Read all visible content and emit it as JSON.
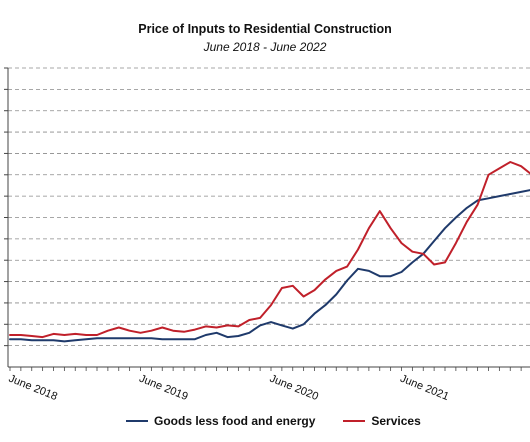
{
  "chart_data": {
    "type": "line",
    "title": "Price of Inputs to Residential Construction",
    "subtitle": "June 2018 - June 2022",
    "xlabel": "",
    "ylabel": "",
    "x": [
      "2018-06",
      "2018-07",
      "2018-08",
      "2018-09",
      "2018-10",
      "2018-11",
      "2018-12",
      "2019-01",
      "2019-02",
      "2019-03",
      "2019-04",
      "2019-05",
      "2019-06",
      "2019-07",
      "2019-08",
      "2019-09",
      "2019-10",
      "2019-11",
      "2019-12",
      "2020-01",
      "2020-02",
      "2020-03",
      "2020-04",
      "2020-05",
      "2020-06",
      "2020-07",
      "2020-08",
      "2020-09",
      "2020-10",
      "2020-11",
      "2020-12",
      "2021-01",
      "2021-02",
      "2021-03",
      "2021-04",
      "2021-05",
      "2021-06",
      "2021-07",
      "2021-08",
      "2021-09",
      "2021-10",
      "2021-11",
      "2021-12",
      "2022-01",
      "2022-02",
      "2022-03",
      "2022-04",
      "2022-05",
      "2022-06"
    ],
    "tick_labels": [
      {
        "x": "2018-06",
        "label": "June 2018"
      },
      {
        "x": "2019-06",
        "label": "June 2019"
      },
      {
        "x": "2020-06",
        "label": "June 2020"
      },
      {
        "x": "2021-06",
        "label": "June 2021"
      }
    ],
    "ylim": [
      0,
      14
    ],
    "y_gridlines": 14,
    "grid": "horizontal dashed",
    "legend_position": "bottom",
    "series": [
      {
        "name": "Goods less food and energy",
        "color": "#1f3a6b",
        "values": [
          1.3,
          1.3,
          1.25,
          1.25,
          1.25,
          1.2,
          1.25,
          1.3,
          1.35,
          1.35,
          1.35,
          1.35,
          1.35,
          1.35,
          1.3,
          1.3,
          1.3,
          1.3,
          1.5,
          1.6,
          1.4,
          1.45,
          1.6,
          1.95,
          2.1,
          1.95,
          1.8,
          2.0,
          2.5,
          2.9,
          3.4,
          4.05,
          4.6,
          4.5,
          4.25,
          4.25,
          4.45,
          4.9,
          5.3,
          5.9,
          6.5,
          7.0,
          7.45,
          7.8,
          7.9,
          8.0,
          8.1,
          8.2,
          8.3
        ]
      },
      {
        "name": "Services",
        "color": "#c0202a",
        "values": [
          1.5,
          1.5,
          1.45,
          1.4,
          1.55,
          1.5,
          1.55,
          1.5,
          1.5,
          1.7,
          1.85,
          1.7,
          1.6,
          1.7,
          1.85,
          1.7,
          1.65,
          1.75,
          1.9,
          1.85,
          1.95,
          1.9,
          2.2,
          2.3,
          2.9,
          3.7,
          3.8,
          3.3,
          3.6,
          4.1,
          4.5,
          4.7,
          5.5,
          6.5,
          7.3,
          6.5,
          5.8,
          5.4,
          5.3,
          4.8,
          4.9,
          5.8,
          6.8,
          7.6,
          9.0,
          9.3,
          9.6,
          9.4,
          9.0
        ]
      }
    ]
  }
}
